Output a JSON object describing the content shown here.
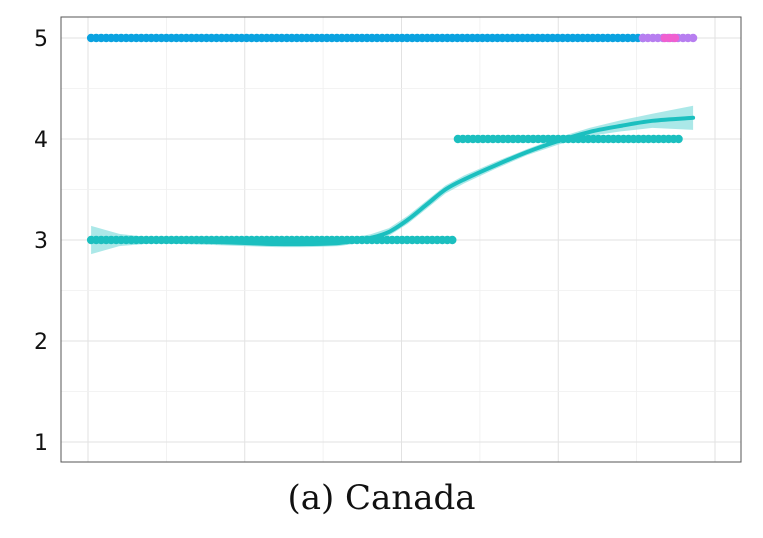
{
  "caption": "(a) Canada",
  "chart_data": {
    "type": "scatter",
    "title": "",
    "xlabel": "",
    "ylabel": "",
    "xlim": [
      0,
      100
    ],
    "ylim": [
      0.8,
      5.22
    ],
    "yticks": [
      1,
      2,
      3,
      4,
      5
    ],
    "xgrid": [
      0,
      12.5,
      25,
      37.5,
      50,
      62.5,
      75,
      87.5,
      100
    ],
    "ygrid": [
      1,
      1.5,
      2,
      2.5,
      3,
      3.5,
      4,
      4.5,
      5
    ],
    "grid": true,
    "legend": "none",
    "colors": {
      "teal": "#1bbfbf",
      "blue": "#0aa2e0",
      "purple": "#b77ef0",
      "pink": "#f060d0",
      "band": "#8fe0e0"
    },
    "series": [
      {
        "color": "#0aa2e0",
        "y": 5,
        "x_start": 0.5,
        "x_end": 88.5,
        "step": 0.8
      },
      {
        "color": "#b77ef0",
        "y": 5,
        "x_start": 88.5,
        "x_end": 96.5,
        "step": 0.8
      },
      {
        "color": "#f060d0",
        "y": 5,
        "x_start": 92,
        "x_end": 94,
        "step": 0.8
      },
      {
        "color": "#1bbfbf",
        "y": 4,
        "x_start": 59,
        "x_end": 94.5,
        "step": 0.8
      },
      {
        "color": "#1bbfbf",
        "y": 3,
        "x_start": 0.5,
        "x_end": 58.5,
        "step": 0.8
      }
    ],
    "smooth": {
      "color": "#1bbfbf",
      "points": [
        [
          0.5,
          3.0
        ],
        [
          5,
          3.0
        ],
        [
          10,
          2.995
        ],
        [
          15,
          2.99
        ],
        [
          20,
          2.98
        ],
        [
          25,
          2.97
        ],
        [
          30,
          2.96
        ],
        [
          35,
          2.96
        ],
        [
          40,
          2.97
        ],
        [
          45,
          3.02
        ],
        [
          48,
          3.08
        ],
        [
          51,
          3.2
        ],
        [
          54,
          3.35
        ],
        [
          57,
          3.5
        ],
        [
          60,
          3.6
        ],
        [
          65,
          3.74
        ],
        [
          70,
          3.87
        ],
        [
          75,
          3.98
        ],
        [
          80,
          4.07
        ],
        [
          85,
          4.13
        ],
        [
          90,
          4.18
        ],
        [
          96.5,
          4.21
        ]
      ],
      "band": [
        [
          0.5,
          0.14
        ],
        [
          5,
          0.06
        ],
        [
          10,
          0.03
        ],
        [
          20,
          0.03
        ],
        [
          30,
          0.03
        ],
        [
          40,
          0.03
        ],
        [
          50,
          0.04
        ],
        [
          60,
          0.04
        ],
        [
          70,
          0.03
        ],
        [
          80,
          0.04
        ],
        [
          90,
          0.07
        ],
        [
          96.5,
          0.12
        ]
      ]
    }
  }
}
